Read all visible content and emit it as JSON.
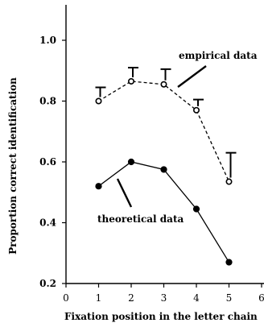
{
  "chart_data": {
    "type": "line",
    "xlabel": "Fixation position in the letter chain",
    "ylabel": "Proportion correct identification",
    "xlim": [
      0,
      6
    ],
    "ylim": [
      0.2,
      1.1
    ],
    "xticks": [
      "0",
      "1",
      "2",
      "3",
      "4",
      "5",
      "6"
    ],
    "yticks": [
      "0.2",
      "0.4",
      "0.6",
      "0.8",
      "1.0"
    ],
    "x": [
      1,
      2,
      3,
      4,
      5
    ],
    "series": [
      {
        "name": "empirical data",
        "values": [
          0.8,
          0.865,
          0.855,
          0.77,
          0.535
        ],
        "error_upper": [
          0.045,
          0.045,
          0.05,
          0.035,
          0.095
        ],
        "marker": "open-circle",
        "line_style": "dashed"
      },
      {
        "name": "theoretical data",
        "values": [
          0.52,
          0.6,
          0.575,
          0.445,
          0.27
        ],
        "marker": "filled-circle",
        "line_style": "solid"
      }
    ],
    "annotations": [
      "empirical data",
      "theoretical data"
    ],
    "grid": false
  }
}
